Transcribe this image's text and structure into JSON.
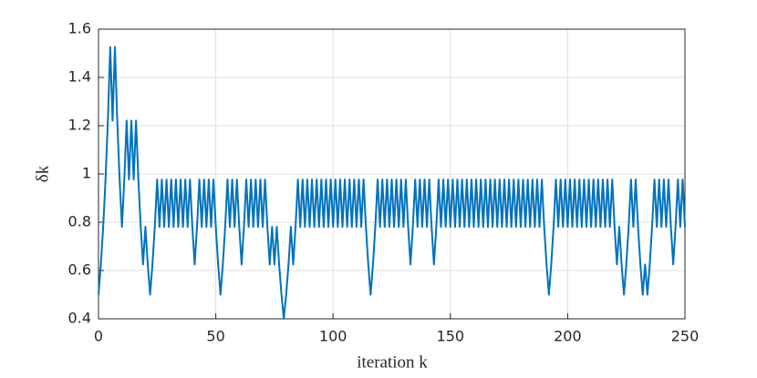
{
  "chart_data": {
    "type": "line",
    "xlabel": "iteration k",
    "ylabel": "δk",
    "color": "#0072BD",
    "x": [
      0,
      1,
      2,
      3,
      4,
      5,
      6,
      7,
      8,
      9,
      10,
      11,
      12,
      13,
      14,
      15,
      16,
      17,
      18,
      19,
      20,
      21,
      22,
      23,
      24,
      25,
      26,
      27,
      28,
      29,
      30,
      31,
      32,
      33,
      34,
      35,
      36,
      37,
      38,
      39,
      40,
      41,
      42,
      43,
      44,
      45,
      46,
      47,
      48,
      49,
      50,
      51,
      52,
      53,
      54,
      55,
      56,
      57,
      58,
      59,
      60,
      61,
      62,
      63,
      64,
      65,
      66,
      67,
      68,
      69,
      70,
      71,
      72,
      73,
      74,
      75,
      76,
      77,
      78,
      79,
      80,
      81,
      82,
      83,
      84,
      85,
      86,
      87,
      88,
      89,
      90,
      91,
      92,
      93,
      94,
      95,
      96,
      97,
      98,
      99,
      100,
      101,
      102,
      103,
      104,
      105,
      106,
      107,
      108,
      109,
      110,
      111,
      112,
      113,
      114,
      115,
      116,
      117,
      118,
      119,
      120,
      121,
      122,
      123,
      124,
      125,
      126,
      127,
      128,
      129,
      130,
      131,
      132,
      133,
      134,
      135,
      136,
      137,
      138,
      139,
      140,
      141,
      142,
      143,
      144,
      145,
      146,
      147,
      148,
      149,
      150,
      151,
      152,
      153,
      154,
      155,
      156,
      157,
      158,
      159,
      160,
      161,
      162,
      163,
      164,
      165,
      166,
      167,
      168,
      169,
      170,
      171,
      172,
      173,
      174,
      175,
      176,
      177,
      178,
      179,
      180,
      181,
      182,
      183,
      184,
      185,
      186,
      187,
      188,
      189,
      190,
      191,
      192,
      193,
      194,
      195,
      196,
      197,
      198,
      199,
      200,
      201,
      202,
      203,
      204,
      205,
      206,
      207,
      208,
      209,
      210,
      211,
      212,
      213,
      214,
      215,
      216,
      217,
      218,
      219,
      220,
      221,
      222,
      223,
      224,
      225,
      226,
      227,
      228,
      229,
      230,
      231,
      232,
      233,
      234,
      235,
      236,
      237,
      238,
      239,
      240,
      241,
      242,
      243,
      244,
      245,
      246,
      247,
      248,
      249,
      250
    ],
    "values": [
      0.5,
      0.625,
      0.781,
      0.977,
      1.221,
      1.526,
      1.221,
      1.526,
      1.221,
      0.977,
      0.781,
      0.977,
      1.221,
      0.977,
      1.221,
      0.977,
      1.221,
      0.977,
      0.781,
      0.625,
      0.781,
      0.625,
      0.5,
      0.625,
      0.781,
      0.977,
      0.781,
      0.977,
      0.781,
      0.977,
      0.781,
      0.977,
      0.781,
      0.977,
      0.781,
      0.977,
      0.781,
      0.977,
      0.781,
      0.977,
      0.781,
      0.625,
      0.781,
      0.977,
      0.781,
      0.977,
      0.781,
      0.977,
      0.781,
      0.977,
      0.781,
      0.625,
      0.5,
      0.625,
      0.781,
      0.977,
      0.781,
      0.977,
      0.781,
      0.977,
      0.781,
      0.625,
      0.781,
      0.977,
      0.781,
      0.977,
      0.781,
      0.977,
      0.781,
      0.977,
      0.781,
      0.977,
      0.781,
      0.625,
      0.781,
      0.625,
      0.781,
      0.625,
      0.5,
      0.4,
      0.5,
      0.625,
      0.781,
      0.625,
      0.781,
      0.977,
      0.781,
      0.977,
      0.781,
      0.977,
      0.781,
      0.977,
      0.781,
      0.977,
      0.781,
      0.977,
      0.781,
      0.977,
      0.781,
      0.977,
      0.781,
      0.977,
      0.781,
      0.977,
      0.781,
      0.977,
      0.781,
      0.977,
      0.781,
      0.977,
      0.781,
      0.977,
      0.781,
      0.977,
      0.781,
      0.625,
      0.5,
      0.625,
      0.781,
      0.977,
      0.781,
      0.977,
      0.781,
      0.977,
      0.781,
      0.977,
      0.781,
      0.977,
      0.781,
      0.977,
      0.781,
      0.977,
      0.781,
      0.625,
      0.781,
      0.977,
      0.781,
      0.977,
      0.781,
      0.977,
      0.781,
      0.977,
      0.781,
      0.625,
      0.781,
      0.977,
      0.781,
      0.977,
      0.781,
      0.977,
      0.781,
      0.977,
      0.781,
      0.977,
      0.781,
      0.977,
      0.781,
      0.977,
      0.781,
      0.977,
      0.781,
      0.977,
      0.781,
      0.977,
      0.781,
      0.977,
      0.781,
      0.977,
      0.781,
      0.977,
      0.781,
      0.977,
      0.781,
      0.977,
      0.781,
      0.977,
      0.781,
      0.977,
      0.781,
      0.977,
      0.781,
      0.977,
      0.781,
      0.977,
      0.781,
      0.977,
      0.781,
      0.977,
      0.781,
      0.977,
      0.781,
      0.625,
      0.5,
      0.625,
      0.781,
      0.977,
      0.781,
      0.977,
      0.781,
      0.977,
      0.781,
      0.977,
      0.781,
      0.977,
      0.781,
      0.977,
      0.781,
      0.977,
      0.781,
      0.977,
      0.781,
      0.977,
      0.781,
      0.977,
      0.781,
      0.977,
      0.781,
      0.977,
      0.781,
      0.977,
      0.781,
      0.625,
      0.781,
      0.625,
      0.5,
      0.625,
      0.781,
      0.977,
      0.781,
      0.977,
      0.781,
      0.625,
      0.5,
      0.625,
      0.5,
      0.625,
      0.781,
      0.977,
      0.781,
      0.977,
      0.781,
      0.977,
      0.781,
      0.977,
      0.781,
      0.625,
      0.781,
      0.977,
      0.781,
      0.977,
      0.781
    ],
    "xlim": [
      0,
      250
    ],
    "xticks": [
      0,
      50,
      100,
      150,
      200,
      250
    ],
    "ylim": [
      0.4,
      1.6
    ],
    "yticks": [
      0.4,
      0.6,
      0.8,
      1,
      1.2,
      1.4,
      1.6
    ],
    "grid": true
  }
}
